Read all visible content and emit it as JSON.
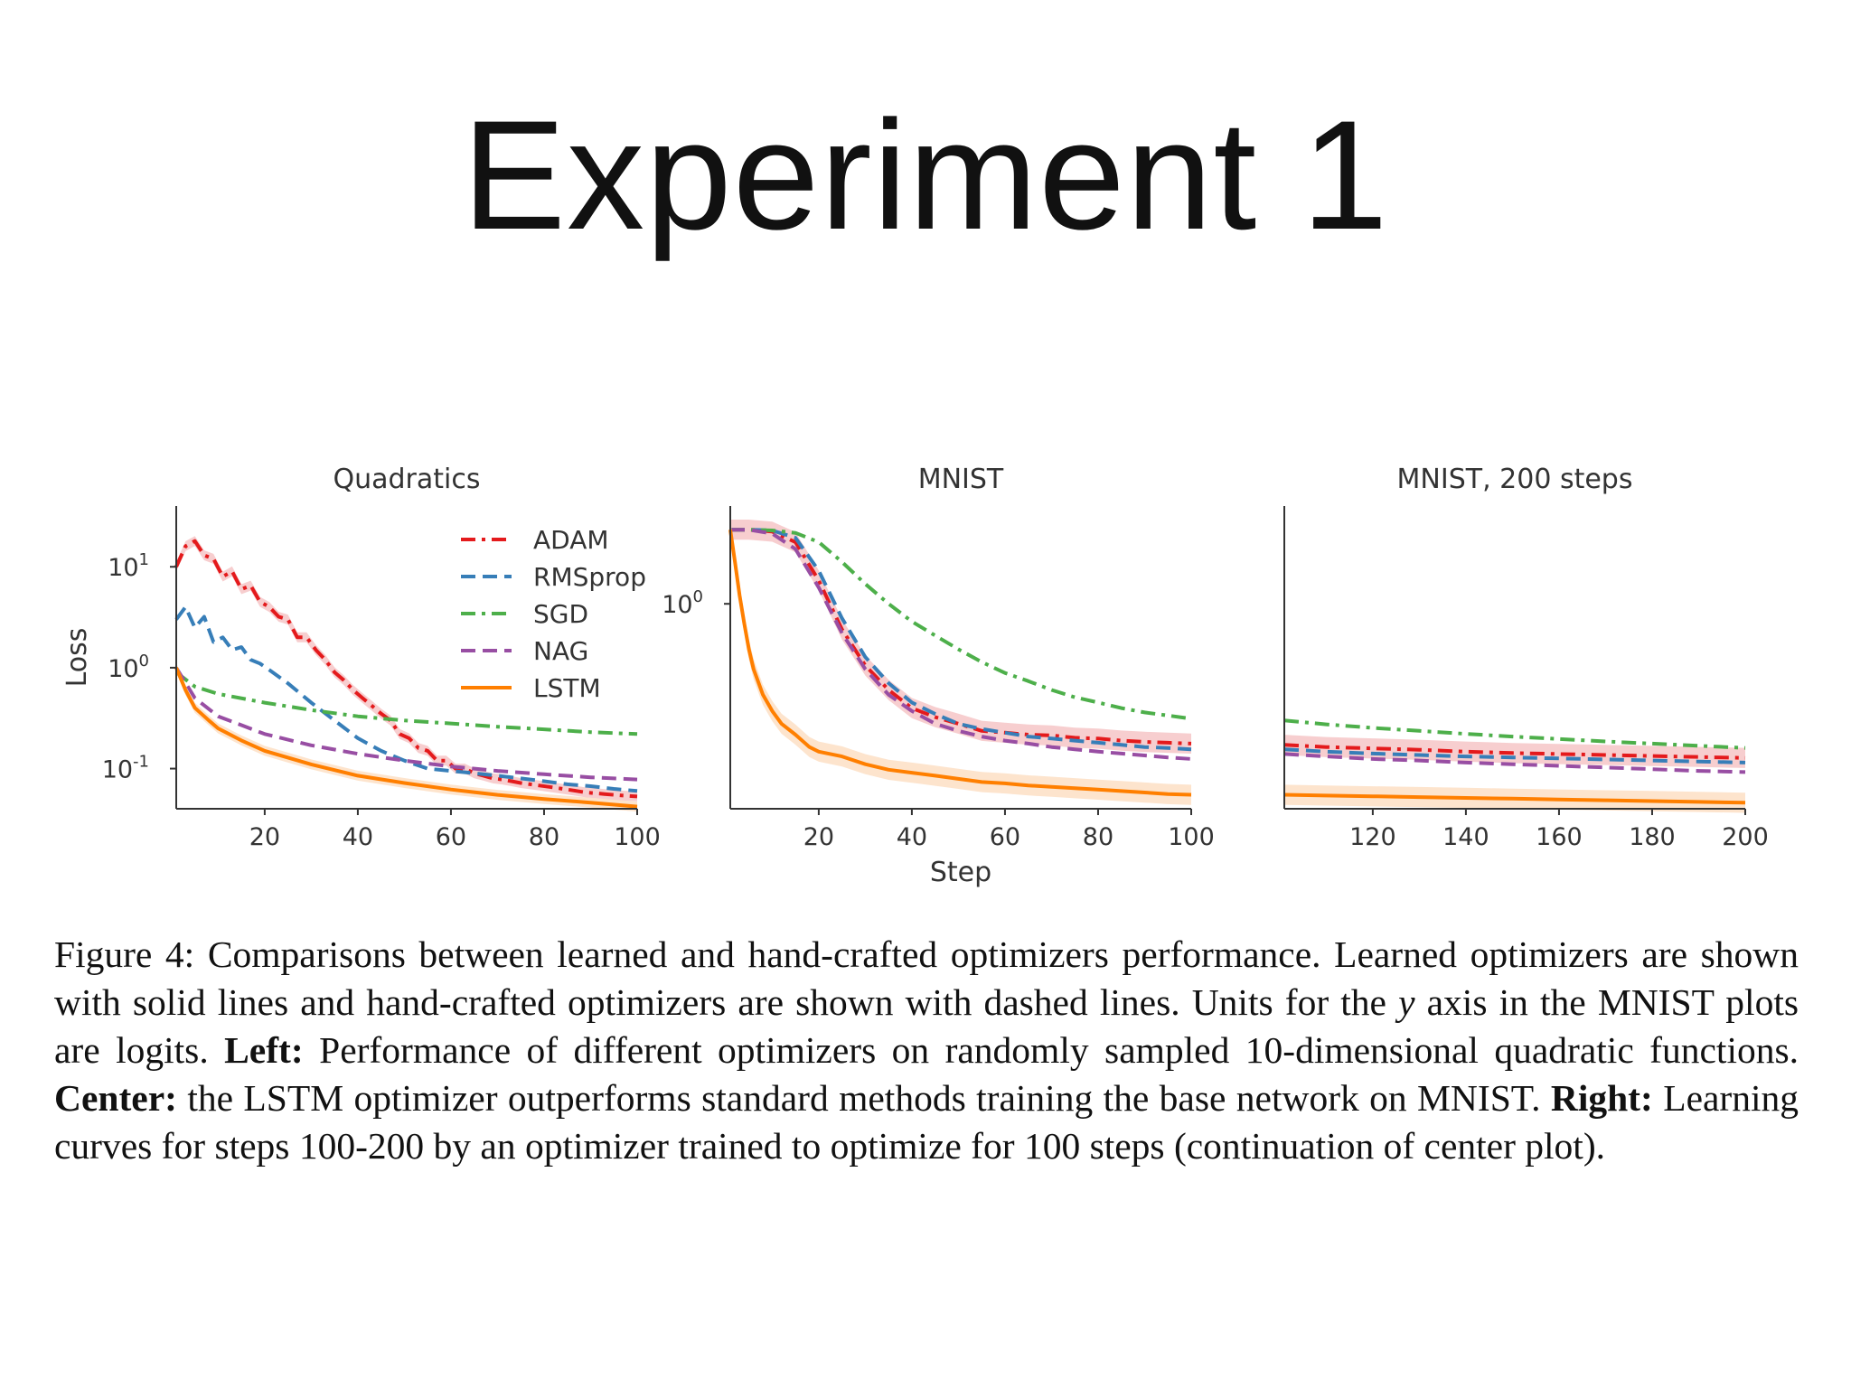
{
  "slide": {
    "title": "Experiment 1"
  },
  "colors": {
    "ADAM": "#e41a1c",
    "RMSprop": "#377eb8",
    "SGD": "#4daf4a",
    "NAG": "#984ea3",
    "LSTM": "#ff7f00",
    "band_ADAM": "#f4b9bb",
    "band_LSTM": "#fcd9b8",
    "axis": "#333333"
  },
  "caption": {
    "figure_label": "Figure 4:",
    "sentence1": "Comparisons between learned and hand-crafted optimizers performance. Learned optimizers are shown with solid lines and hand-crafted optimizers are shown with dashed lines. Units for the",
    "y_var": "y",
    "sentence2": "axis in the MNIST plots are logits.",
    "left_label": "Left:",
    "left_text": "Performance of different optimizers on randomly sampled 10-dimensional quadratic functions.",
    "center_label": "Center:",
    "center_text": "the LSTM optimizer outperforms standard methods training the base network on MNIST.",
    "right_label": "Right:",
    "right_text": "Learning curves for steps 100-200 by an optimizer trained to optimize for 100 steps (continuation of center plot)."
  },
  "chart_data": [
    {
      "type": "line",
      "title": "Quadratics",
      "xlabel": "",
      "ylabel": "Loss",
      "yscale": "log",
      "xlim": [
        1,
        100
      ],
      "ylim": [
        0.04,
        40
      ],
      "xticks": [
        20,
        40,
        60,
        80,
        100
      ],
      "yticks": [
        {
          "value": 10,
          "base": "10",
          "exp": "1"
        },
        {
          "value": 1,
          "base": "10",
          "exp": "0"
        },
        {
          "value": 0.1,
          "base": "10",
          "exp": "-1"
        }
      ],
      "legend": {
        "position": "top-right",
        "entries": [
          "ADAM",
          "RMSprop",
          "SGD",
          "NAG",
          "LSTM"
        ]
      },
      "series": [
        {
          "name": "ADAM",
          "style": "dashdot",
          "x": [
            1,
            3,
            5,
            7,
            9,
            11,
            13,
            15,
            17,
            19,
            21,
            23,
            25,
            27,
            29,
            31,
            33,
            35,
            37,
            39,
            41,
            43,
            45,
            47,
            49,
            51,
            53,
            55,
            57,
            59,
            61,
            63,
            65,
            67,
            69,
            71,
            73,
            75,
            77,
            79,
            81,
            83,
            85,
            87,
            89,
            91,
            93,
            95,
            97,
            100
          ],
          "y": [
            10,
            16,
            18,
            13,
            12,
            8,
            9,
            6,
            6.5,
            4.5,
            4,
            3.2,
            3,
            2,
            2,
            1.5,
            1.2,
            0.9,
            0.75,
            0.6,
            0.5,
            0.42,
            0.35,
            0.3,
            0.22,
            0.2,
            0.16,
            0.15,
            0.12,
            0.12,
            0.1,
            0.1,
            0.09,
            0.085,
            0.08,
            0.078,
            0.075,
            0.072,
            0.07,
            0.068,
            0.066,
            0.064,
            0.062,
            0.06,
            0.058,
            0.057,
            0.056,
            0.055,
            0.054,
            0.053
          ]
        },
        {
          "name": "RMSprop",
          "style": "dashed",
          "x": [
            1,
            3,
            5,
            7,
            9,
            11,
            13,
            15,
            17,
            19,
            21,
            25,
            30,
            35,
            40,
            45,
            50,
            55,
            60,
            65,
            70,
            75,
            80,
            85,
            90,
            95,
            100
          ],
          "y": [
            3,
            4,
            2.5,
            3.2,
            1.8,
            2,
            1.5,
            1.6,
            1.2,
            1.1,
            0.95,
            0.7,
            0.45,
            0.3,
            0.2,
            0.15,
            0.12,
            0.1,
            0.095,
            0.09,
            0.085,
            0.08,
            0.075,
            0.07,
            0.067,
            0.063,
            0.06
          ]
        },
        {
          "name": "SGD",
          "style": "dashdot",
          "x": [
            1,
            5,
            10,
            20,
            30,
            40,
            50,
            60,
            70,
            80,
            90,
            100
          ],
          "y": [
            0.9,
            0.65,
            0.55,
            0.45,
            0.38,
            0.33,
            0.3,
            0.28,
            0.26,
            0.245,
            0.23,
            0.22
          ]
        },
        {
          "name": "NAG",
          "style": "dashed",
          "x": [
            1,
            5,
            10,
            20,
            30,
            40,
            50,
            60,
            70,
            80,
            90,
            100
          ],
          "y": [
            1.0,
            0.5,
            0.33,
            0.22,
            0.17,
            0.14,
            0.12,
            0.105,
            0.095,
            0.088,
            0.082,
            0.078
          ]
        },
        {
          "name": "LSTM",
          "style": "solid",
          "x": [
            1,
            3,
            5,
            8,
            10,
            15,
            20,
            30,
            40,
            50,
            60,
            70,
            80,
            90,
            100
          ],
          "y": [
            1.0,
            0.6,
            0.4,
            0.3,
            0.25,
            0.19,
            0.15,
            0.11,
            0.085,
            0.072,
            0.062,
            0.055,
            0.05,
            0.046,
            0.042
          ]
        }
      ]
    },
    {
      "type": "line",
      "title": "MNIST",
      "xlabel": "Step",
      "ylabel": "",
      "yscale": "log",
      "xlim": [
        1,
        100
      ],
      "ylim": [
        0.1,
        3.0
      ],
      "xticks": [
        20,
        40,
        60,
        80,
        100
      ],
      "yticks": [
        {
          "value": 1,
          "base": "10",
          "exp": "0"
        }
      ],
      "series": [
        {
          "name": "ADAM",
          "style": "dashdot",
          "x": [
            1,
            5,
            10,
            15,
            20,
            25,
            30,
            35,
            40,
            45,
            50,
            55,
            60,
            65,
            70,
            75,
            80,
            85,
            90,
            95,
            100
          ],
          "y": [
            2.3,
            2.3,
            2.25,
            2.0,
            1.3,
            0.75,
            0.5,
            0.38,
            0.31,
            0.28,
            0.26,
            0.24,
            0.235,
            0.23,
            0.228,
            0.222,
            0.22,
            0.215,
            0.212,
            0.21,
            0.208
          ]
        },
        {
          "name": "RMSprop",
          "style": "dashed",
          "x": [
            1,
            5,
            10,
            15,
            20,
            25,
            30,
            35,
            40,
            45,
            50,
            55,
            60,
            65,
            70,
            75,
            80,
            85,
            90,
            95,
            100
          ],
          "y": [
            2.3,
            2.3,
            2.28,
            2.1,
            1.45,
            0.85,
            0.55,
            0.41,
            0.33,
            0.29,
            0.26,
            0.245,
            0.235,
            0.225,
            0.22,
            0.215,
            0.21,
            0.205,
            0.2,
            0.198,
            0.195
          ]
        },
        {
          "name": "SGD",
          "style": "dashdot",
          "x": [
            1,
            5,
            10,
            15,
            20,
            25,
            30,
            35,
            40,
            45,
            50,
            55,
            60,
            65,
            70,
            75,
            80,
            85,
            90,
            95,
            100
          ],
          "y": [
            2.3,
            2.3,
            2.28,
            2.22,
            2.0,
            1.6,
            1.25,
            1.0,
            0.82,
            0.7,
            0.6,
            0.52,
            0.46,
            0.42,
            0.38,
            0.35,
            0.33,
            0.31,
            0.295,
            0.285,
            0.275
          ]
        },
        {
          "name": "NAG",
          "style": "dashed",
          "x": [
            1,
            5,
            10,
            15,
            20,
            25,
            30,
            35,
            40,
            45,
            50,
            55,
            60,
            65,
            70,
            75,
            80,
            85,
            90,
            95,
            100
          ],
          "y": [
            2.3,
            2.3,
            2.2,
            1.85,
            1.2,
            0.72,
            0.48,
            0.36,
            0.3,
            0.26,
            0.24,
            0.225,
            0.215,
            0.208,
            0.2,
            0.195,
            0.19,
            0.186,
            0.182,
            0.178,
            0.175
          ]
        },
        {
          "name": "LSTM",
          "style": "solid",
          "x": [
            1,
            2,
            3,
            4,
            5,
            6,
            8,
            10,
            12,
            15,
            18,
            20,
            25,
            30,
            35,
            40,
            45,
            50,
            55,
            60,
            65,
            70,
            75,
            80,
            85,
            90,
            95,
            100
          ],
          "y": [
            2.3,
            1.6,
            1.1,
            0.8,
            0.6,
            0.48,
            0.36,
            0.3,
            0.26,
            0.23,
            0.2,
            0.19,
            0.18,
            0.165,
            0.155,
            0.15,
            0.145,
            0.14,
            0.135,
            0.133,
            0.13,
            0.128,
            0.126,
            0.124,
            0.122,
            0.12,
            0.118,
            0.117
          ]
        }
      ]
    },
    {
      "type": "line",
      "title": "MNIST, 200 steps",
      "xlabel": "",
      "ylabel": "",
      "yscale": "log",
      "xlim": [
        101,
        200
      ],
      "ylim": [
        0.1,
        3.0
      ],
      "xticks": [
        120,
        140,
        160,
        180,
        200
      ],
      "yticks": [],
      "series": [
        {
          "name": "ADAM",
          "style": "dashdot",
          "x": [
            101,
            110,
            120,
            130,
            140,
            150,
            160,
            170,
            180,
            190,
            200
          ],
          "y": [
            0.205,
            0.2,
            0.197,
            0.194,
            0.19,
            0.187,
            0.185,
            0.183,
            0.181,
            0.179,
            0.177
          ]
        },
        {
          "name": "RMSprop",
          "style": "dashed",
          "x": [
            101,
            110,
            120,
            130,
            140,
            150,
            160,
            170,
            180,
            190,
            200
          ],
          "y": [
            0.195,
            0.19,
            0.186,
            0.183,
            0.18,
            0.178,
            0.176,
            0.174,
            0.172,
            0.17,
            0.168
          ]
        },
        {
          "name": "SGD",
          "style": "dashdot",
          "x": [
            101,
            110,
            120,
            130,
            140,
            150,
            160,
            170,
            180,
            190,
            200
          ],
          "y": [
            0.27,
            0.258,
            0.248,
            0.24,
            0.232,
            0.225,
            0.219,
            0.213,
            0.208,
            0.203,
            0.198
          ]
        },
        {
          "name": "NAG",
          "style": "dashed",
          "x": [
            101,
            110,
            120,
            130,
            140,
            150,
            160,
            170,
            180,
            190,
            200
          ],
          "y": [
            0.185,
            0.18,
            0.175,
            0.172,
            0.168,
            0.165,
            0.162,
            0.159,
            0.156,
            0.153,
            0.151
          ]
        },
        {
          "name": "LSTM",
          "style": "solid",
          "x": [
            101,
            110,
            120,
            130,
            140,
            150,
            160,
            170,
            180,
            190,
            200
          ],
          "y": [
            0.117,
            0.116,
            0.115,
            0.114,
            0.113,
            0.112,
            0.111,
            0.11,
            0.109,
            0.108,
            0.107
          ]
        }
      ]
    }
  ]
}
